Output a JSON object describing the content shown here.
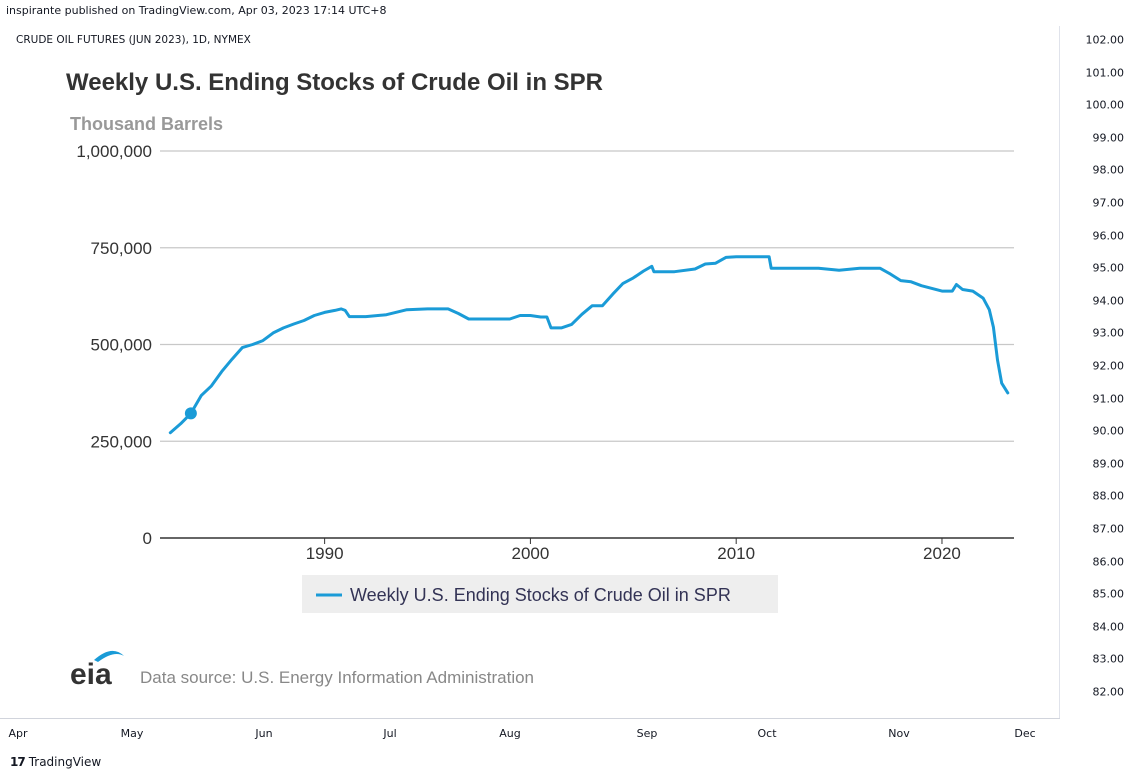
{
  "header": {
    "published": "inspirante published on TradingView.com, Apr 03, 2023 17:14 UTC+8"
  },
  "symbol": {
    "label": "CRUDE OIL FUTURES (JUN 2023), 1D, NYMEX"
  },
  "price_axis": {
    "labels": [
      "102.00",
      "101.00",
      "100.00",
      "99.00",
      "98.00",
      "97.00",
      "96.00",
      "95.00",
      "94.00",
      "93.00",
      "92.00",
      "91.00",
      "90.00",
      "89.00",
      "88.00",
      "87.00",
      "86.00",
      "85.00",
      "84.00",
      "83.00",
      "82.00"
    ]
  },
  "time_axis": {
    "labels": [
      "Apr",
      "May",
      "Jun",
      "Jul",
      "Aug",
      "Sep",
      "Oct",
      "Nov",
      "Dec"
    ]
  },
  "footer": {
    "brand": "TradingView",
    "logo_glyph": "17"
  },
  "eia": {
    "logo_text": "eia",
    "source": "Data source: U.S. Energy Information Administration"
  },
  "colors": {
    "series": "#1a9bd7",
    "grid": "#c8c8c8",
    "legend_bg": "#eeeeee"
  },
  "chart_data": {
    "type": "line",
    "title": "Weekly U.S. Ending Stocks of Crude Oil in SPR",
    "ylabel": "Thousand Barrels",
    "ylim": [
      0,
      1000000
    ],
    "xlim": [
      1982,
      2023.5
    ],
    "y_ticks": [
      "1,000,000",
      "750,000",
      "500,000",
      "250,000",
      "0"
    ],
    "y_tick_values": [
      1000000,
      750000,
      500000,
      250000,
      0
    ],
    "x_ticks": [
      "1990",
      "2000",
      "2010",
      "2020"
    ],
    "x_tick_values": [
      1990,
      2000,
      2010,
      2020
    ],
    "legend": {
      "position": "bottom",
      "label": "Weekly U.S. Ending Stocks of Crude Oil in SPR"
    },
    "grid": true,
    "marker": {
      "x": 1983.5,
      "y": 322000
    },
    "series": [
      {
        "name": "Weekly U.S. Ending Stocks of Crude Oil in SPR",
        "x": [
          1982.5,
          1983.0,
          1983.5,
          1984.0,
          1984.5,
          1985.0,
          1985.5,
          1986.0,
          1986.5,
          1987.0,
          1987.5,
          1988.0,
          1988.5,
          1989.0,
          1989.5,
          1990.0,
          1990.5,
          1990.8,
          1991.0,
          1991.2,
          1992.0,
          1993.0,
          1994.0,
          1995.0,
          1996.0,
          1996.5,
          1997.0,
          1998.0,
          1999.0,
          1999.5,
          2000.0,
          2000.5,
          2000.8,
          2001.0,
          2001.5,
          2002.0,
          2002.5,
          2003.0,
          2003.5,
          2004.0,
          2004.5,
          2005.0,
          2005.5,
          2005.9,
          2006.0,
          2007.0,
          2008.0,
          2008.5,
          2009.0,
          2009.5,
          2010.0,
          2011.0,
          2011.6,
          2011.7,
          2012.0,
          2013.0,
          2014.0,
          2015.0,
          2016.0,
          2017.0,
          2017.5,
          2018.0,
          2018.5,
          2019.0,
          2020.0,
          2020.5,
          2020.7,
          2021.0,
          2021.5,
          2022.0,
          2022.3,
          2022.5,
          2022.7,
          2022.9,
          2023.2
        ],
        "y": [
          272000,
          295000,
          322000,
          368000,
          393000,
          430000,
          462000,
          492000,
          500000,
          510000,
          530000,
          543000,
          553000,
          562000,
          575000,
          583000,
          588000,
          592000,
          588000,
          572000,
          572000,
          577000,
          590000,
          592000,
          592000,
          580000,
          566000,
          566000,
          566000,
          575000,
          575000,
          571000,
          571000,
          543000,
          543000,
          552000,
          578000,
          600000,
          600000,
          630000,
          658000,
          672000,
          690000,
          702000,
          688000,
          688000,
          695000,
          708000,
          710000,
          725000,
          727000,
          727000,
          727000,
          697000,
          697000,
          697000,
          697000,
          692000,
          697000,
          697000,
          682000,
          665000,
          662000,
          652000,
          638000,
          638000,
          655000,
          642000,
          638000,
          620000,
          590000,
          545000,
          460000,
          400000,
          375000
        ]
      }
    ]
  }
}
